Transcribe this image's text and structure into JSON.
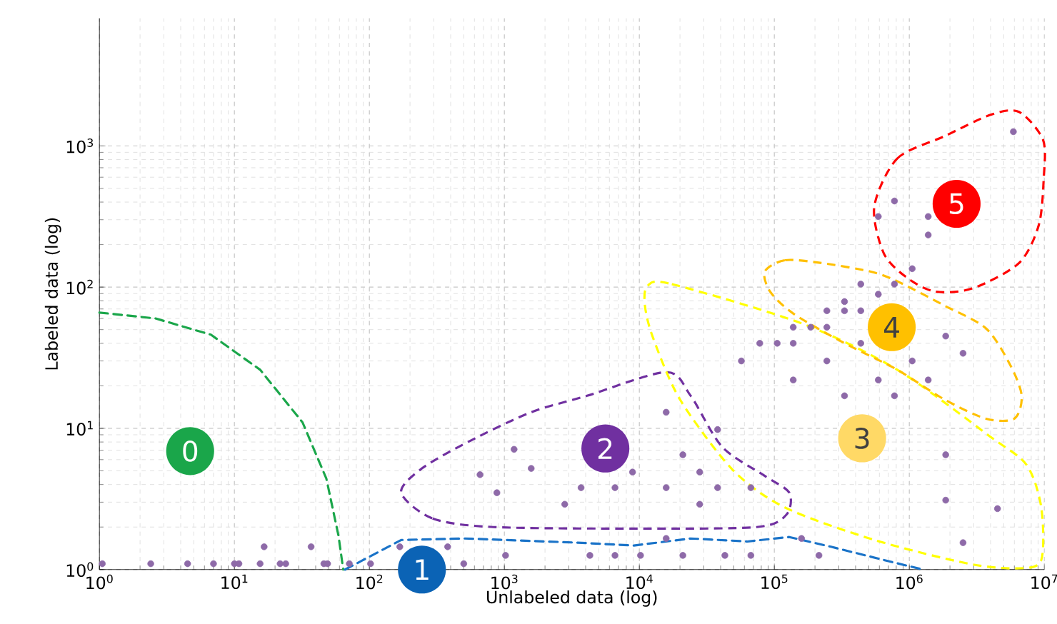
{
  "chart_data": {
    "type": "scatter",
    "xlabel": "Unlabeled data (log)",
    "ylabel": "Labeled data (log)",
    "log": "xy",
    "grid": true,
    "xlim": [
      1,
      10000000
    ],
    "ylim": [
      1,
      8000
    ],
    "xticks": [
      {
        "value": 1,
        "label": "10$^{0}$"
      },
      {
        "value": 10,
        "label": "10$^{1}$"
      },
      {
        "value": 100,
        "label": "10$^{2}$"
      },
      {
        "value": 1000,
        "label": "10$^{3}$"
      },
      {
        "value": 10000,
        "label": "10$^{4}$"
      },
      {
        "value": 100000,
        "label": "10$^{5}$"
      },
      {
        "value": 1000000,
        "label": "10$^{6}$"
      },
      {
        "value": 10000000,
        "label": "10$^{7}$"
      }
    ],
    "yticks": [
      {
        "value": 1,
        "label": "10$^{0}$"
      },
      {
        "value": 10,
        "label": "10$^{1}$"
      },
      {
        "value": 100,
        "label": "10$^{2}$"
      },
      {
        "value": 1000,
        "label": "10$^{3}$"
      }
    ],
    "series": [
      {
        "type": "scatter",
        "color": "#8e6aa8",
        "x": [
          1.05,
          2.4,
          4.5,
          7.0,
          10,
          10.8,
          15.5,
          21.8,
          24,
          46,
          49,
          71,
          102,
          500,
          16.6,
          37,
          168,
          380,
          1020,
          4300,
          6600,
          10200,
          21000,
          43000,
          67000,
          214000,
          660,
          880,
          1180,
          1580,
          2800,
          3700,
          6600,
          8900,
          15800,
          15800,
          21000,
          28000,
          28000,
          38000,
          38000,
          67000,
          15800,
          159000,
          5900000,
          776000,
          589000,
          1380000,
          1380000,
          1050000,
          437000,
          776000,
          589000,
          331000,
          245000,
          331000,
          437000,
          138000,
          186000,
          245000,
          78000,
          105000,
          138000,
          437000,
          1860000,
          2500000,
          57000,
          245000,
          1050000,
          138000,
          589000,
          1380000,
          331000,
          776000,
          1860000,
          1860000,
          4500000,
          2500000
        ],
        "values": [
          1.1,
          1.1,
          1.1,
          1.1,
          1.1,
          1.1,
          1.1,
          1.1,
          1.1,
          1.1,
          1.1,
          1.1,
          1.1,
          1.1,
          1.45,
          1.45,
          1.45,
          1.45,
          1.26,
          1.26,
          1.26,
          1.26,
          1.26,
          1.26,
          1.26,
          1.26,
          4.7,
          3.5,
          7.1,
          5.2,
          2.9,
          3.8,
          3.8,
          4.9,
          3.8,
          13,
          6.5,
          4.9,
          2.9,
          3.8,
          9.8,
          3.8,
          1.66,
          1.66,
          1260,
          407,
          316,
          316,
          234,
          135,
          105,
          105,
          89,
          79,
          68,
          68,
          68,
          52,
          52,
          52,
          40,
          40,
          40,
          40,
          45,
          34,
          30,
          30,
          30,
          22,
          22,
          22,
          17,
          17,
          6.5,
          3.1,
          2.7,
          1.55
        ]
      },
      {
        "type": "line",
        "line_style": "dashed",
        "color": "#1aa64a",
        "x": [
          1,
          2.6,
          6.7,
          15.5,
          32,
          48,
          59,
          64
        ],
        "values": [
          66,
          60,
          46,
          26,
          11,
          4.4,
          1.74,
          1
        ]
      },
      {
        "type": "line",
        "line_style": "dashed",
        "color": "#1a73c8",
        "x": [
          66,
          172,
          510,
          3500,
          9100,
          24000,
          63000,
          129000,
          263000,
          692000,
          1260000
        ],
        "values": [
          1,
          1.62,
          1.66,
          1.55,
          1.48,
          1.66,
          1.58,
          1.7,
          1.45,
          1.15,
          1
        ]
      }
    ],
    "annotations": [
      {
        "text": "0",
        "x": 4.7,
        "y": 6.9
      },
      {
        "text": "1",
        "x": 245,
        "y": 1
      },
      {
        "text": "2",
        "x": 5600,
        "y": 7.2
      },
      {
        "text": "3",
        "x": 447000,
        "y": 8.5
      },
      {
        "text": "4",
        "x": 741000,
        "y": 52
      },
      {
        "text": "5",
        "x": 2240000,
        "y": 389
      }
    ]
  }
}
